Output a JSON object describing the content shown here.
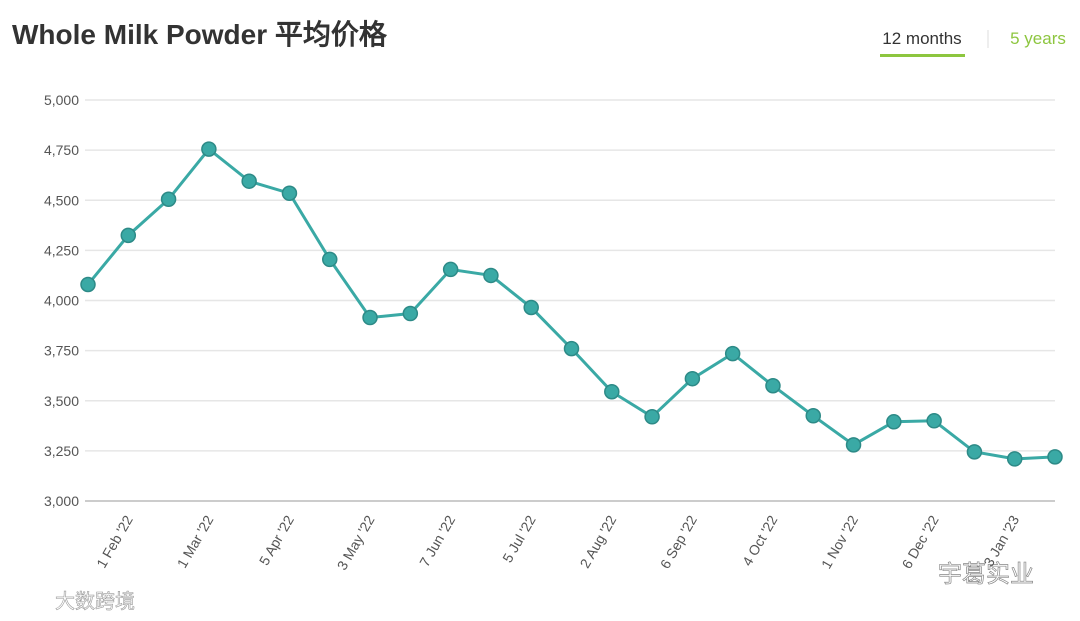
{
  "header": {
    "tabs": [
      "12 months",
      "5 years"
    ]
  },
  "watermarks": [
    "大数跨境",
    "宇葛实业"
  ],
  "chart_data": {
    "type": "line",
    "title": "Whole Milk Powder 平均价格",
    "categories": [
      null,
      "1 Feb '22",
      null,
      "1 Mar '22",
      null,
      "5 Apr '22",
      null,
      "3 May '22",
      null,
      "7 Jun '22",
      null,
      "5 Jul '22",
      null,
      "2 Aug '22",
      null,
      "6 Sep '22",
      null,
      "4 Oct '22",
      null,
      "1 Nov '22",
      null,
      "6 Dec '22",
      null,
      "3 Jan '23",
      null
    ],
    "series": [
      {
        "name": "Whole Milk Powder",
        "color": "#3aa9a5",
        "values": [
          4080,
          4325,
          4505,
          4755,
          4595,
          4535,
          4205,
          3915,
          3935,
          4155,
          4125,
          3965,
          3760,
          3545,
          3420,
          3610,
          3735,
          3575,
          3425,
          3280,
          3395,
          3400,
          3245,
          3210,
          3220
        ]
      }
    ],
    "ylim": [
      3000,
      5000
    ],
    "yticks": [
      {
        "value": 3000,
        "label": "3,000"
      },
      {
        "value": 3250,
        "label": "3,250"
      },
      {
        "value": 3500,
        "label": "3,500"
      },
      {
        "value": 3750,
        "label": "3,750"
      },
      {
        "value": 4000,
        "label": "4,000"
      },
      {
        "value": 4250,
        "label": "4,250"
      },
      {
        "value": 4500,
        "label": "4,500"
      },
      {
        "value": 4750,
        "label": "4,750"
      },
      {
        "value": 5000,
        "label": "5,000"
      }
    ],
    "grid": true
  }
}
